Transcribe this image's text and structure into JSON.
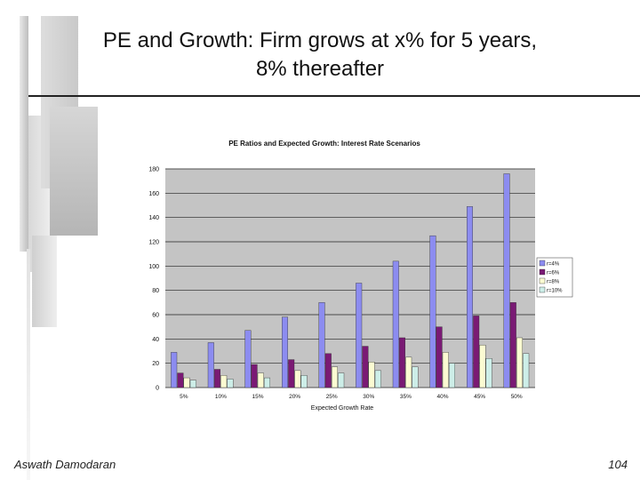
{
  "slide": {
    "title_line1": "PE and Growth: Firm grows at x% for 5 years,",
    "title_line2": "8% thereafter",
    "author": "Aswath Damodaran",
    "page_number": "104"
  },
  "colors": {
    "r=4%": "#8c8cf0",
    "r=6%": "#7a1a74",
    "r=8%": "#fbfbd2",
    "r=10%": "#cdeee8",
    "plot_background": "#c4c4c4"
  },
  "chart_data": {
    "type": "bar",
    "title": "PE Ratios and Expected Growth: Interest Rate Scenarios",
    "xlabel": "Expected Growth Rate",
    "ylabel": "",
    "categories": [
      "5%",
      "10%",
      "15%",
      "20%",
      "25%",
      "30%",
      "35%",
      "40%",
      "45%",
      "50%"
    ],
    "ylim": [
      0,
      180
    ],
    "yticks": [
      0,
      20,
      40,
      60,
      80,
      100,
      120,
      140,
      160,
      180
    ],
    "grid": true,
    "legend_position": "right",
    "series": [
      {
        "name": "r=4%",
        "values": [
          29,
          37,
          47,
          58,
          70,
          86,
          104,
          125,
          149,
          176
        ]
      },
      {
        "name": "r=6%",
        "values": [
          12,
          15,
          19,
          23,
          28,
          34,
          41,
          50,
          59,
          70
        ]
      },
      {
        "name": "r=8%",
        "values": [
          8,
          10,
          12,
          14,
          17,
          21,
          25,
          29,
          35,
          41
        ]
      },
      {
        "name": "r=10%",
        "values": [
          6,
          7,
          8,
          10,
          12,
          14,
          17,
          20,
          24,
          28
        ]
      }
    ]
  }
}
